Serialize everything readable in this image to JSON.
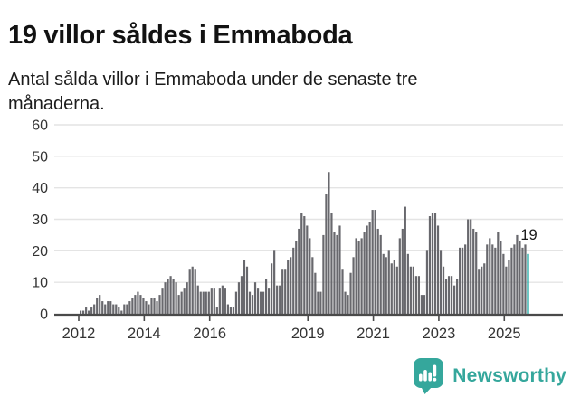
{
  "header": {
    "title": "19 villor såldes i Emmaboda",
    "subtitle": "Antal sålda villor i Emmaboda under de senaste tre månaderna."
  },
  "chart_data": {
    "type": "bar",
    "title": "19 villor såldes i Emmaboda",
    "subtitle": "Antal sålda villor i Emmaboda under de senaste tre månaderna.",
    "xlabel": "",
    "ylabel": "",
    "x_start": "2012-01",
    "x_end": "2025-09",
    "x_unit": "month",
    "values": [
      1,
      1,
      2,
      1,
      2,
      3,
      5,
      6,
      4,
      3,
      4,
      4,
      3,
      3,
      2,
      1,
      3,
      3,
      4,
      5,
      6,
      7,
      6,
      5,
      4,
      3,
      5,
      5,
      4,
      6,
      8,
      10,
      11,
      12,
      11,
      10,
      6,
      7,
      8,
      10,
      14,
      15,
      14,
      9,
      7,
      7,
      7,
      7,
      8,
      8,
      2,
      8,
      9,
      8,
      3,
      2,
      2,
      7,
      10,
      12,
      17,
      15,
      7,
      6,
      10,
      8,
      7,
      7,
      11,
      8,
      16,
      20,
      9,
      9,
      14,
      14,
      17,
      18,
      21,
      23,
      27,
      32,
      31,
      28,
      24,
      18,
      13,
      7,
      7,
      25,
      38,
      45,
      32,
      26,
      25,
      28,
      14,
      7,
      6,
      13,
      18,
      24,
      23,
      24,
      26,
      28,
      29,
      33,
      33,
      27,
      25,
      19,
      18,
      20,
      16,
      17,
      15,
      24,
      27,
      34,
      19,
      15,
      15,
      12,
      12,
      6,
      6,
      20,
      31,
      32,
      32,
      28,
      20,
      15,
      11,
      12,
      12,
      9,
      11,
      21,
      21,
      22,
      30,
      30,
      27,
      26,
      14,
      15,
      16,
      22,
      24,
      22,
      21,
      26,
      23,
      19,
      15,
      17,
      21,
      22,
      25,
      23,
      21,
      22,
      19
    ],
    "y_ticks": [
      0,
      10,
      20,
      30,
      40,
      50,
      60
    ],
    "ylim": [
      0,
      60
    ],
    "x_tick_years": [
      2012,
      2014,
      2016,
      2019,
      2021,
      2023,
      2025
    ],
    "grid": true,
    "legend": "none",
    "bar_color": "#68686d",
    "highlight_last": {
      "value": 19,
      "label": "19",
      "color": "#0ea39e"
    },
    "annotation": "19"
  },
  "axes": {
    "y_labels": [
      "60",
      "50",
      "40",
      "30",
      "20",
      "10",
      "0"
    ],
    "x_labels": [
      "2012",
      "2014",
      "2016",
      "2019",
      "2021",
      "2023",
      "2025"
    ]
  },
  "footer": {
    "brand": "Newsworthy",
    "brand_color": "#35a79c"
  },
  "colors": {
    "bar": "#68686d",
    "highlight": "#0ea39e",
    "gridline": "#e4e4e4",
    "axis": "#4a4a4a",
    "tick_label": "#333333",
    "annotation": "#1a1a1a"
  }
}
